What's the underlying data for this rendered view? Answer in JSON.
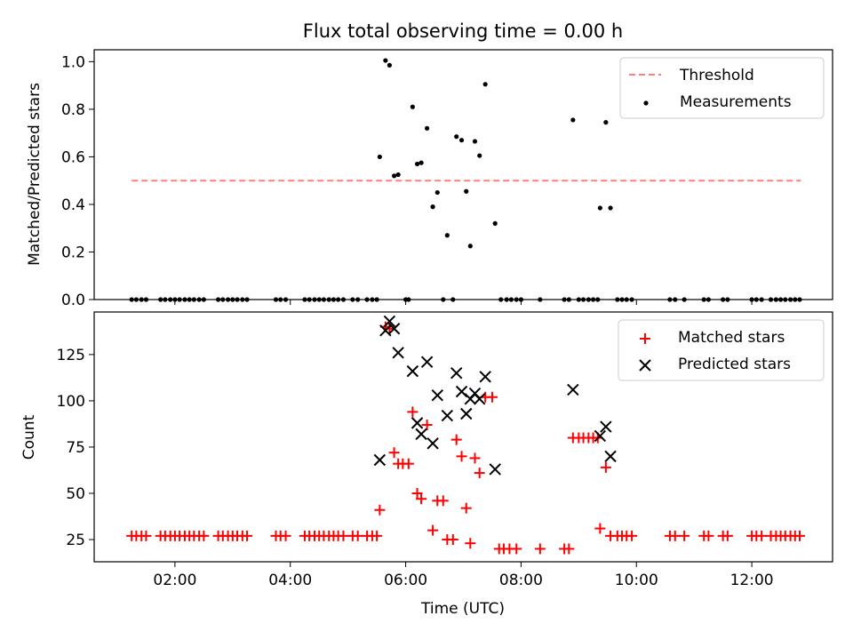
{
  "chart_data": [
    {
      "type": "scatter",
      "title": "Flux total observing time = 0.00 h",
      "ylabel": "Matched/Predicted stars",
      "xlabel": "",
      "x_unit": "hours UTC",
      "xlim": [
        0.6,
        13.4
      ],
      "ylim": [
        0,
        1.05
      ],
      "yticks": [
        0.0,
        0.2,
        0.4,
        0.6,
        0.8,
        1.0
      ],
      "ytick_labels": [
        "0.0",
        "0.2",
        "0.4",
        "0.6",
        "0.8",
        "1.0"
      ],
      "grid": false,
      "legend_position": "top-right",
      "threshold": {
        "name": "Threshold",
        "y": 0.5,
        "x_range": [
          1.25,
          12.85
        ],
        "color": "#ff7f7f"
      },
      "series": [
        {
          "name": "Measurements",
          "color": "#000000",
          "marker": "dot",
          "points": [
            [
              1.25,
              0
            ],
            [
              1.33,
              0
            ],
            [
              1.42,
              0
            ],
            [
              1.5,
              0
            ],
            [
              1.75,
              0
            ],
            [
              1.83,
              0
            ],
            [
              1.92,
              0
            ],
            [
              2.0,
              0
            ],
            [
              2.08,
              0
            ],
            [
              2.17,
              0
            ],
            [
              2.25,
              0
            ],
            [
              2.33,
              0
            ],
            [
              2.42,
              0
            ],
            [
              2.5,
              0
            ],
            [
              2.75,
              0
            ],
            [
              2.83,
              0
            ],
            [
              2.92,
              0
            ],
            [
              3.0,
              0
            ],
            [
              3.08,
              0
            ],
            [
              3.17,
              0
            ],
            [
              3.25,
              0
            ],
            [
              3.75,
              0
            ],
            [
              3.83,
              0
            ],
            [
              3.92,
              0
            ],
            [
              4.25,
              0
            ],
            [
              4.33,
              0
            ],
            [
              4.42,
              0
            ],
            [
              4.5,
              0
            ],
            [
              4.58,
              0
            ],
            [
              4.67,
              0
            ],
            [
              4.75,
              0
            ],
            [
              4.83,
              0
            ],
            [
              4.92,
              0
            ],
            [
              5.08,
              0
            ],
            [
              5.17,
              0
            ],
            [
              5.33,
              0
            ],
            [
              5.42,
              0
            ],
            [
              5.5,
              0
            ],
            [
              5.55,
              0.6
            ],
            [
              5.65,
              1.005
            ],
            [
              5.72,
              0.985
            ],
            [
              5.8,
              0.52
            ],
            [
              5.87,
              0.525
            ],
            [
              6.0,
              0
            ],
            [
              6.05,
              0
            ],
            [
              6.12,
              0.81
            ],
            [
              6.2,
              0.57
            ],
            [
              6.27,
              0.575
            ],
            [
              6.37,
              0.72
            ],
            [
              6.47,
              0.39
            ],
            [
              6.55,
              0.45
            ],
            [
              6.65,
              0
            ],
            [
              6.72,
              0.27
            ],
            [
              6.82,
              0
            ],
            [
              6.88,
              0.685
            ],
            [
              6.97,
              0.67
            ],
            [
              7.05,
              0.455
            ],
            [
              7.12,
              0.225
            ],
            [
              7.2,
              0.665
            ],
            [
              7.28,
              0.605
            ],
            [
              7.38,
              0.905
            ],
            [
              7.55,
              0.32
            ],
            [
              7.65,
              0
            ],
            [
              7.75,
              0
            ],
            [
              7.83,
              0
            ],
            [
              7.92,
              0
            ],
            [
              8.0,
              0
            ],
            [
              8.33,
              0
            ],
            [
              8.75,
              0
            ],
            [
              8.83,
              0
            ],
            [
              8.9,
              0.755
            ],
            [
              9.0,
              0
            ],
            [
              9.08,
              0
            ],
            [
              9.17,
              0
            ],
            [
              9.25,
              0
            ],
            [
              9.33,
              0
            ],
            [
              9.37,
              0.385
            ],
            [
              9.47,
              0.745
            ],
            [
              9.55,
              0.385
            ],
            [
              9.67,
              0
            ],
            [
              9.75,
              0
            ],
            [
              9.83,
              0
            ],
            [
              9.92,
              0
            ],
            [
              10.58,
              0
            ],
            [
              10.67,
              0
            ],
            [
              10.83,
              0
            ],
            [
              11.17,
              0
            ],
            [
              11.25,
              0
            ],
            [
              11.5,
              0
            ],
            [
              11.58,
              0
            ],
            [
              12.0,
              0
            ],
            [
              12.08,
              0
            ],
            [
              12.17,
              0
            ],
            [
              12.33,
              0
            ],
            [
              12.42,
              0
            ],
            [
              12.5,
              0
            ],
            [
              12.58,
              0
            ],
            [
              12.67,
              0
            ],
            [
              12.75,
              0
            ],
            [
              12.83,
              0
            ]
          ]
        }
      ]
    },
    {
      "type": "scatter",
      "title": "",
      "xlabel": "Time (UTC)",
      "ylabel": "Count",
      "xlim": [
        0.6,
        13.4
      ],
      "ylim": [
        13,
        148
      ],
      "xticks": [
        2,
        4,
        6,
        8,
        10,
        12
      ],
      "xtick_labels": [
        "02:00",
        "04:00",
        "06:00",
        "08:00",
        "10:00",
        "12:00"
      ],
      "yticks": [
        25,
        50,
        75,
        100,
        125
      ],
      "ytick_labels": [
        "25",
        "50",
        "75",
        "100",
        "125"
      ],
      "grid": false,
      "legend_position": "top-right",
      "series": [
        {
          "name": "Matched stars",
          "color": "#ff0000",
          "marker": "plus",
          "points": [
            [
              1.25,
              27
            ],
            [
              1.33,
              27
            ],
            [
              1.42,
              27
            ],
            [
              1.5,
              27
            ],
            [
              1.75,
              27
            ],
            [
              1.83,
              27
            ],
            [
              1.92,
              27
            ],
            [
              2.0,
              27
            ],
            [
              2.08,
              27
            ],
            [
              2.17,
              27
            ],
            [
              2.25,
              27
            ],
            [
              2.33,
              27
            ],
            [
              2.42,
              27
            ],
            [
              2.5,
              27
            ],
            [
              2.75,
              27
            ],
            [
              2.83,
              27
            ],
            [
              2.92,
              27
            ],
            [
              3.0,
              27
            ],
            [
              3.08,
              27
            ],
            [
              3.17,
              27
            ],
            [
              3.25,
              27
            ],
            [
              3.75,
              27
            ],
            [
              3.83,
              27
            ],
            [
              3.92,
              27
            ],
            [
              4.25,
              27
            ],
            [
              4.33,
              27
            ],
            [
              4.42,
              27
            ],
            [
              4.5,
              27
            ],
            [
              4.58,
              27
            ],
            [
              4.67,
              27
            ],
            [
              4.75,
              27
            ],
            [
              4.83,
              27
            ],
            [
              4.92,
              27
            ],
            [
              5.08,
              27
            ],
            [
              5.17,
              27
            ],
            [
              5.33,
              27
            ],
            [
              5.42,
              27
            ],
            [
              5.5,
              27
            ],
            [
              5.55,
              41
            ],
            [
              5.65,
              140
            ],
            [
              5.72,
              139
            ],
            [
              5.8,
              72
            ],
            [
              5.87,
              66
            ],
            [
              5.95,
              66
            ],
            [
              6.05,
              66
            ],
            [
              6.12,
              94
            ],
            [
              6.2,
              50
            ],
            [
              6.27,
              47
            ],
            [
              6.37,
              87
            ],
            [
              6.47,
              30
            ],
            [
              6.55,
              46
            ],
            [
              6.65,
              46
            ],
            [
              6.72,
              25
            ],
            [
              6.82,
              25
            ],
            [
              6.88,
              79
            ],
            [
              6.97,
              70
            ],
            [
              7.05,
              42
            ],
            [
              7.12,
              23
            ],
            [
              7.2,
              69
            ],
            [
              7.28,
              61
            ],
            [
              7.38,
              102
            ],
            [
              7.5,
              102
            ],
            [
              7.62,
              20
            ],
            [
              7.7,
              20
            ],
            [
              7.8,
              20
            ],
            [
              7.92,
              20
            ],
            [
              8.33,
              20
            ],
            [
              8.75,
              20
            ],
            [
              8.83,
              20
            ],
            [
              8.9,
              80
            ],
            [
              9.0,
              80
            ],
            [
              9.08,
              80
            ],
            [
              9.17,
              80
            ],
            [
              9.25,
              80
            ],
            [
              9.33,
              80
            ],
            [
              9.37,
              31
            ],
            [
              9.47,
              64
            ],
            [
              9.55,
              27
            ],
            [
              9.67,
              27
            ],
            [
              9.75,
              27
            ],
            [
              9.83,
              27
            ],
            [
              9.92,
              27
            ],
            [
              10.58,
              27
            ],
            [
              10.67,
              27
            ],
            [
              10.83,
              27
            ],
            [
              11.17,
              27
            ],
            [
              11.25,
              27
            ],
            [
              11.5,
              27
            ],
            [
              11.58,
              27
            ],
            [
              12.0,
              27
            ],
            [
              12.08,
              27
            ],
            [
              12.17,
              27
            ],
            [
              12.33,
              27
            ],
            [
              12.42,
              27
            ],
            [
              12.5,
              27
            ],
            [
              12.58,
              27
            ],
            [
              12.67,
              27
            ],
            [
              12.75,
              27
            ],
            [
              12.83,
              27
            ]
          ]
        },
        {
          "name": "Predicted stars",
          "color": "#000000",
          "marker": "x",
          "points": [
            [
              5.55,
              68
            ],
            [
              5.65,
              138
            ],
            [
              5.72,
              143
            ],
            [
              5.8,
              139
            ],
            [
              5.87,
              126
            ],
            [
              6.12,
              116
            ],
            [
              6.2,
              88
            ],
            [
              6.27,
              82
            ],
            [
              6.37,
              121
            ],
            [
              6.47,
              77
            ],
            [
              6.55,
              103
            ],
            [
              6.72,
              92
            ],
            [
              6.88,
              115
            ],
            [
              6.97,
              105
            ],
            [
              7.05,
              93
            ],
            [
              7.12,
              101
            ],
            [
              7.2,
              104
            ],
            [
              7.28,
              101
            ],
            [
              7.38,
              113
            ],
            [
              7.55,
              63
            ],
            [
              8.9,
              106
            ],
            [
              9.37,
              81
            ],
            [
              9.47,
              86
            ],
            [
              9.55,
              70
            ]
          ]
        }
      ]
    }
  ]
}
